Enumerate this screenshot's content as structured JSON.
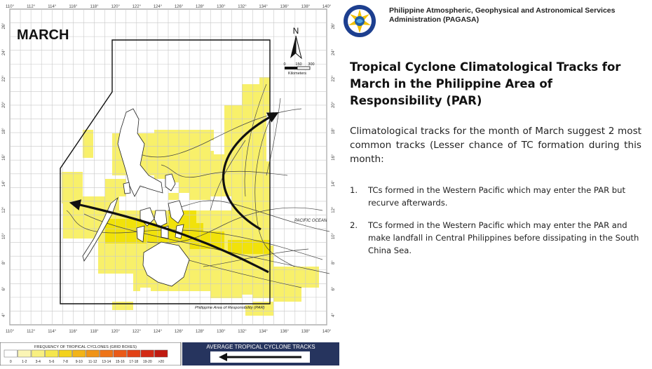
{
  "map": {
    "month_label": "MARCH",
    "longitude_ticks": [
      "110°",
      "112°",
      "114°",
      "116°",
      "118°",
      "120°",
      "122°",
      "124°",
      "126°",
      "128°",
      "130°",
      "132°",
      "134°",
      "136°",
      "138°",
      "140°"
    ],
    "latitude_ticks": [
      "4°",
      "6°",
      "8°",
      "10°",
      "12°",
      "14°",
      "16°",
      "18°",
      "20°",
      "22°",
      "24°",
      "26°"
    ],
    "north_label": "N",
    "scale_labels": [
      "0",
      "150",
      "300"
    ],
    "scale_unit": "Kilometers",
    "ocean_label": "PACIFIC OCEAN",
    "par_label": "Philippine Area of Responsibility (PAR)",
    "shade_color": "#f8f06a",
    "arrow_color": "#111111"
  },
  "legend": {
    "frequency_title": "FREQUENCY OF TROPICAL CYCLONES (GRID BOXES)",
    "bins": [
      "0",
      "1-2",
      "3-4",
      "5-6",
      "7-8",
      "9-10",
      "11-12",
      "13-14",
      "15-16",
      "17-18",
      "19-20",
      ">20"
    ],
    "bin_colors": [
      "#ffffff",
      "#fbf5b5",
      "#f8ef80",
      "#f5e64c",
      "#f3d21b",
      "#f2b418",
      "#f09418",
      "#ee7418",
      "#ea5a18",
      "#e24216",
      "#d42a14",
      "#c01a10"
    ],
    "average_tracks_title": "AVERAGE TROPICAL CYCLONE TRACKS"
  },
  "header": {
    "agency_name": "Philippine Atmospheric, Geophysical and Astronomical Services Administration (PAGASA)"
  },
  "content": {
    "title": "Tropical Cyclone Climatological Tracks for March in the Philippine Area of Responsibility (PAR)",
    "intro": "Climatological tracks for the month of March suggest 2 most common tracks (Lesser chance of TC formation during this month:",
    "tracks": [
      {
        "number": "1.",
        "text": "TCs formed in the Western Pacific which may enter the PAR but recurve afterwards."
      },
      {
        "number": "2.",
        "text": "TCs formed in the Western Pacific which may enter the PAR and make landfall in Central Philippines before dissipating in the South China Sea."
      }
    ]
  }
}
